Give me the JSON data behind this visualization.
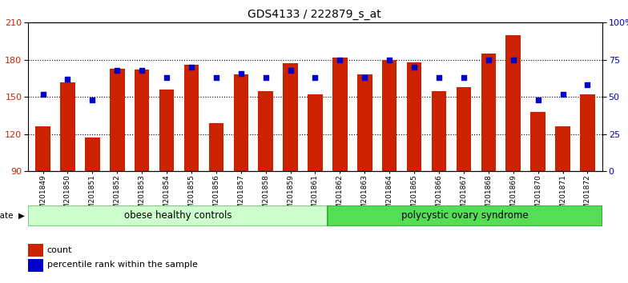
{
  "title": "GDS4133 / 222879_s_at",
  "samples": [
    "GSM201849",
    "GSM201850",
    "GSM201851",
    "GSM201852",
    "GSM201853",
    "GSM201854",
    "GSM201855",
    "GSM201856",
    "GSM201857",
    "GSM201858",
    "GSM201859",
    "GSM201861",
    "GSM201862",
    "GSM201863",
    "GSM201864",
    "GSM201865",
    "GSM201866",
    "GSM201867",
    "GSM201868",
    "GSM201869",
    "GSM201870",
    "GSM201871",
    "GSM201872"
  ],
  "counts": [
    126,
    162,
    117,
    173,
    172,
    156,
    176,
    129,
    168,
    155,
    177,
    152,
    182,
    168,
    180,
    178,
    155,
    158,
    185,
    200,
    138,
    126,
    152
  ],
  "percentiles": [
    52,
    62,
    48,
    68,
    68,
    63,
    70,
    63,
    66,
    63,
    68,
    63,
    75,
    63,
    75,
    70,
    63,
    63,
    75,
    75,
    48,
    52,
    58
  ],
  "group1_label": "obese healthy controls",
  "group1_count": 12,
  "group2_label": "polycystic ovary syndrome",
  "group2_count": 11,
  "bar_color": "#cc2200",
  "dot_color": "#0000cc",
  "group1_face": "#ccffcc",
  "group1_edge": "#66cc66",
  "group2_face": "#55dd55",
  "group2_edge": "#33aa33",
  "ymin": 90,
  "ymax": 210,
  "yticks_left": [
    90,
    120,
    150,
    180,
    210
  ],
  "yticks_right": [
    0,
    25,
    50,
    75,
    100
  ],
  "grid_lines": [
    120,
    150,
    180
  ],
  "legend_count_label": "count",
  "legend_pct_label": "percentile rank within the sample",
  "bar_color_hex": "#cc2200",
  "dot_color_hex": "#0000cc"
}
